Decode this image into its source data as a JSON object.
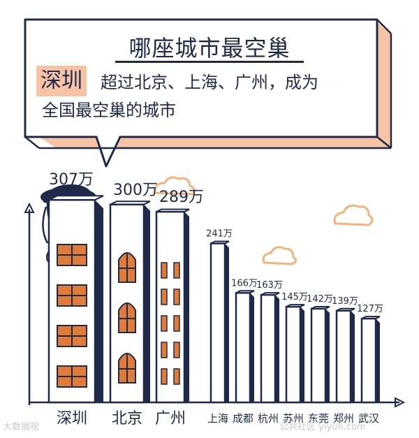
{
  "header": {
    "title": "哪座城市最空巢",
    "highlight": "深圳",
    "subtitle_rest": "超过北京、上海、广州，成为",
    "subtitle_line2": "全国最空巢的城市"
  },
  "chart_data": {
    "type": "bar",
    "unit": "万",
    "categories": [
      "深圳",
      "北京",
      "广州",
      "上海",
      "成都",
      "杭州",
      "苏州",
      "东莞",
      "郑州",
      "武汉"
    ],
    "values": [
      307,
      300,
      289,
      241,
      166,
      163,
      145,
      142,
      139,
      127
    ],
    "value_labels": [
      "307万",
      "300万",
      "289万",
      "241万",
      "166万",
      "163万",
      "145万",
      "142万",
      "139万",
      "127万"
    ],
    "title": "",
    "xlabel": "",
    "ylabel": "",
    "grid": false,
    "legend": "none"
  },
  "watermarks": {
    "left": "大数据视",
    "right": "公共社区 yiyun.com"
  },
  "colors": {
    "navy": "#1f2a4a",
    "peach": "#f6c3a4",
    "orange": "#e07b39",
    "cloud": "#f6b07a"
  }
}
